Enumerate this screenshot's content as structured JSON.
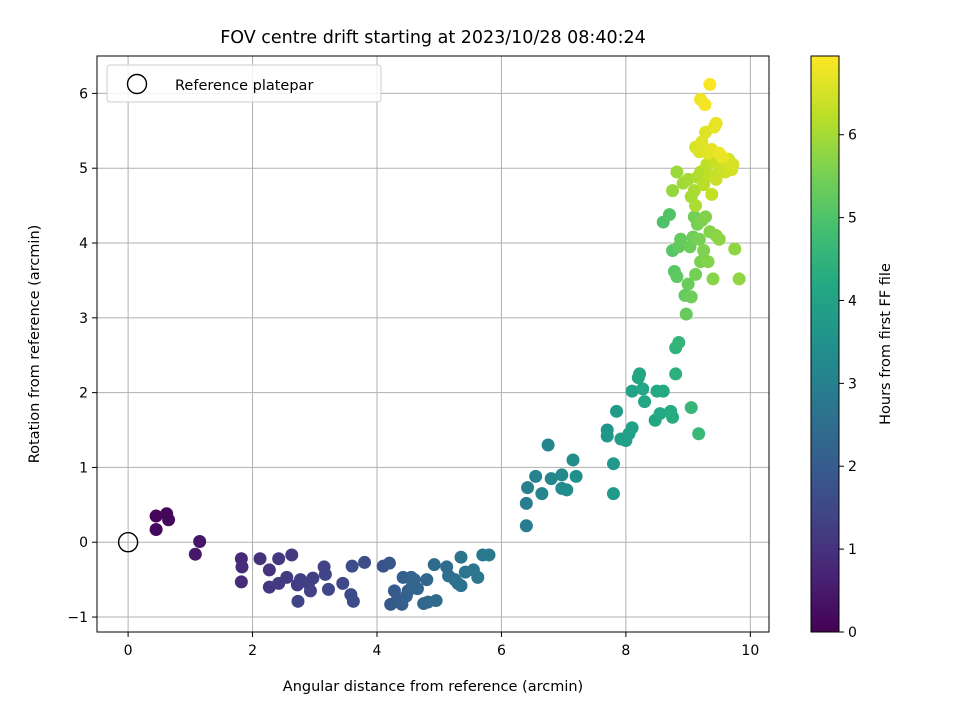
{
  "chart_data": {
    "type": "scatter",
    "title": "FOV centre drift starting at 2023/10/28 08:40:24",
    "xlabel": "Angular distance from reference (arcmin)",
    "ylabel": "Rotation from reference (arcmin)",
    "xlim": [
      -0.5,
      10.3
    ],
    "ylim": [
      -1.2,
      6.5
    ],
    "xticks": [
      "0",
      "2",
      "4",
      "6",
      "8",
      "10"
    ],
    "yticks": [
      "−1",
      "0",
      "1",
      "2",
      "3",
      "4",
      "5",
      "6"
    ],
    "grid": true,
    "legend": {
      "position": "top-left",
      "entries": [
        "Reference platepar"
      ]
    },
    "reference_point": {
      "x": 0,
      "y": 0
    },
    "colorbar": {
      "label": "Hours from first FF file",
      "range": [
        0,
        6.95
      ],
      "ticks": [
        "0",
        "1",
        "2",
        "3",
        "4",
        "5",
        "6"
      ],
      "colormap": "viridis"
    },
    "points": [
      {
        "x": 0.45,
        "y": 0.35,
        "h": 0.1
      },
      {
        "x": 0.62,
        "y": 0.38,
        "h": 0.12
      },
      {
        "x": 0.65,
        "y": 0.3,
        "h": 0.15
      },
      {
        "x": 0.45,
        "y": 0.17,
        "h": 0.18
      },
      {
        "x": 1.15,
        "y": 0.01,
        "h": 0.4
      },
      {
        "x": 1.08,
        "y": -0.16,
        "h": 0.45
      },
      {
        "x": 1.82,
        "y": -0.22,
        "h": 0.8
      },
      {
        "x": 1.83,
        "y": -0.33,
        "h": 0.85
      },
      {
        "x": 1.82,
        "y": -0.53,
        "h": 0.9
      },
      {
        "x": 2.12,
        "y": -0.22,
        "h": 1.0
      },
      {
        "x": 2.27,
        "y": -0.37,
        "h": 1.05
      },
      {
        "x": 2.42,
        "y": -0.22,
        "h": 1.1
      },
      {
        "x": 2.63,
        "y": -0.17,
        "h": 1.12
      },
      {
        "x": 2.27,
        "y": -0.6,
        "h": 1.15
      },
      {
        "x": 2.42,
        "y": -0.55,
        "h": 1.18
      },
      {
        "x": 2.55,
        "y": -0.47,
        "h": 1.2
      },
      {
        "x": 2.72,
        "y": -0.57,
        "h": 1.22
      },
      {
        "x": 2.77,
        "y": -0.5,
        "h": 1.25
      },
      {
        "x": 2.9,
        "y": -0.55,
        "h": 1.28
      },
      {
        "x": 2.97,
        "y": -0.48,
        "h": 1.3
      },
      {
        "x": 2.93,
        "y": -0.65,
        "h": 1.33
      },
      {
        "x": 3.15,
        "y": -0.33,
        "h": 1.36
      },
      {
        "x": 3.17,
        "y": -0.43,
        "h": 1.4
      },
      {
        "x": 2.73,
        "y": -0.79,
        "h": 1.42
      },
      {
        "x": 3.22,
        "y": -0.63,
        "h": 1.45
      },
      {
        "x": 3.45,
        "y": -0.55,
        "h": 1.5
      },
      {
        "x": 3.58,
        "y": -0.7,
        "h": 1.55
      },
      {
        "x": 3.62,
        "y": -0.79,
        "h": 1.58
      },
      {
        "x": 3.6,
        "y": -0.32,
        "h": 1.62
      },
      {
        "x": 3.8,
        "y": -0.27,
        "h": 1.65
      },
      {
        "x": 4.1,
        "y": -0.32,
        "h": 1.8
      },
      {
        "x": 4.2,
        "y": -0.28,
        "h": 1.85
      },
      {
        "x": 4.22,
        "y": -0.83,
        "h": 1.9
      },
      {
        "x": 4.28,
        "y": -0.65,
        "h": 1.95
      },
      {
        "x": 4.32,
        "y": -0.78,
        "h": 2.0
      },
      {
        "x": 4.4,
        "y": -0.83,
        "h": 2.05
      },
      {
        "x": 4.42,
        "y": -0.47,
        "h": 2.1
      },
      {
        "x": 4.47,
        "y": -0.72,
        "h": 2.15
      },
      {
        "x": 4.5,
        "y": -0.65,
        "h": 2.18
      },
      {
        "x": 4.55,
        "y": -0.47,
        "h": 2.2
      },
      {
        "x": 4.57,
        "y": -0.58,
        "h": 2.22
      },
      {
        "x": 4.6,
        "y": -0.5,
        "h": 2.25
      },
      {
        "x": 4.65,
        "y": -0.62,
        "h": 2.28
      },
      {
        "x": 4.75,
        "y": -0.82,
        "h": 2.3
      },
      {
        "x": 4.8,
        "y": -0.5,
        "h": 2.32
      },
      {
        "x": 4.82,
        "y": -0.8,
        "h": 2.35
      },
      {
        "x": 4.92,
        "y": -0.3,
        "h": 2.38
      },
      {
        "x": 4.95,
        "y": -0.78,
        "h": 2.4
      },
      {
        "x": 5.12,
        "y": -0.33,
        "h": 2.45
      },
      {
        "x": 5.15,
        "y": -0.45,
        "h": 2.5
      },
      {
        "x": 5.25,
        "y": -0.5,
        "h": 2.55
      },
      {
        "x": 5.3,
        "y": -0.55,
        "h": 2.6
      },
      {
        "x": 5.35,
        "y": -0.58,
        "h": 2.62
      },
      {
        "x": 5.35,
        "y": -0.2,
        "h": 2.65
      },
      {
        "x": 5.42,
        "y": -0.4,
        "h": 2.7
      },
      {
        "x": 5.55,
        "y": -0.37,
        "h": 2.72
      },
      {
        "x": 5.62,
        "y": -0.47,
        "h": 2.75
      },
      {
        "x": 5.7,
        "y": -0.17,
        "h": 2.78
      },
      {
        "x": 5.8,
        "y": -0.17,
        "h": 2.8
      },
      {
        "x": 6.4,
        "y": 0.22,
        "h": 2.9
      },
      {
        "x": 6.4,
        "y": 0.52,
        "h": 2.95
      },
      {
        "x": 6.42,
        "y": 0.73,
        "h": 3.0
      },
      {
        "x": 6.55,
        "y": 0.88,
        "h": 3.05
      },
      {
        "x": 6.65,
        "y": 0.65,
        "h": 3.1
      },
      {
        "x": 6.75,
        "y": 1.3,
        "h": 3.15
      },
      {
        "x": 6.8,
        "y": 0.85,
        "h": 3.2
      },
      {
        "x": 6.97,
        "y": 0.9,
        "h": 3.25
      },
      {
        "x": 6.97,
        "y": 0.72,
        "h": 3.3
      },
      {
        "x": 7.05,
        "y": 0.7,
        "h": 3.35
      },
      {
        "x": 7.15,
        "y": 1.1,
        "h": 3.4
      },
      {
        "x": 7.2,
        "y": 0.88,
        "h": 3.45
      },
      {
        "x": 7.7,
        "y": 1.5,
        "h": 3.6
      },
      {
        "x": 7.7,
        "y": 1.42,
        "h": 3.65
      },
      {
        "x": 7.8,
        "y": 1.05,
        "h": 3.7
      },
      {
        "x": 7.8,
        "y": 0.65,
        "h": 3.75
      },
      {
        "x": 7.85,
        "y": 1.75,
        "h": 3.8
      },
      {
        "x": 7.92,
        "y": 1.38,
        "h": 3.85
      },
      {
        "x": 8.0,
        "y": 1.36,
        "h": 3.9
      },
      {
        "x": 8.05,
        "y": 1.45,
        "h": 3.92
      },
      {
        "x": 8.1,
        "y": 1.53,
        "h": 3.95
      },
      {
        "x": 8.1,
        "y": 2.02,
        "h": 4.0
      },
      {
        "x": 8.2,
        "y": 2.2,
        "h": 4.05
      },
      {
        "x": 8.22,
        "y": 2.25,
        "h": 4.08
      },
      {
        "x": 8.27,
        "y": 2.05,
        "h": 4.1
      },
      {
        "x": 8.3,
        "y": 1.88,
        "h": 4.12
      },
      {
        "x": 8.47,
        "y": 1.63,
        "h": 4.15
      },
      {
        "x": 8.5,
        "y": 2.02,
        "h": 4.18
      },
      {
        "x": 8.55,
        "y": 1.72,
        "h": 4.2
      },
      {
        "x": 8.6,
        "y": 2.02,
        "h": 4.22
      },
      {
        "x": 8.72,
        "y": 1.75,
        "h": 4.25
      },
      {
        "x": 8.75,
        "y": 1.67,
        "h": 4.28
      },
      {
        "x": 8.8,
        "y": 2.25,
        "h": 4.4
      },
      {
        "x": 8.8,
        "y": 2.6,
        "h": 4.5
      },
      {
        "x": 8.85,
        "y": 2.67,
        "h": 4.55
      },
      {
        "x": 9.05,
        "y": 1.8,
        "h": 4.6
      },
      {
        "x": 9.17,
        "y": 1.45,
        "h": 4.65
      },
      {
        "x": 8.6,
        "y": 4.28,
        "h": 5.0
      },
      {
        "x": 8.7,
        "y": 4.38,
        "h": 5.05
      },
      {
        "x": 8.75,
        "y": 3.9,
        "h": 5.1
      },
      {
        "x": 8.78,
        "y": 3.62,
        "h": 5.15
      },
      {
        "x": 8.82,
        "y": 3.55,
        "h": 5.2
      },
      {
        "x": 8.85,
        "y": 3.95,
        "h": 5.25
      },
      {
        "x": 8.88,
        "y": 4.05,
        "h": 5.28
      },
      {
        "x": 8.95,
        "y": 3.3,
        "h": 5.3
      },
      {
        "x": 8.97,
        "y": 3.05,
        "h": 5.32
      },
      {
        "x": 9.0,
        "y": 3.45,
        "h": 5.35
      },
      {
        "x": 9.03,
        "y": 3.95,
        "h": 5.38
      },
      {
        "x": 9.05,
        "y": 3.28,
        "h": 5.4
      },
      {
        "x": 9.08,
        "y": 4.08,
        "h": 5.42
      },
      {
        "x": 9.1,
        "y": 4.35,
        "h": 5.45
      },
      {
        "x": 9.12,
        "y": 3.58,
        "h": 5.48
      },
      {
        "x": 9.15,
        "y": 4.25,
        "h": 5.5
      },
      {
        "x": 9.18,
        "y": 4.05,
        "h": 5.52
      },
      {
        "x": 9.2,
        "y": 3.75,
        "h": 5.55
      },
      {
        "x": 9.22,
        "y": 4.3,
        "h": 5.58
      },
      {
        "x": 9.25,
        "y": 3.9,
        "h": 5.6
      },
      {
        "x": 9.28,
        "y": 4.35,
        "h": 5.62
      },
      {
        "x": 9.32,
        "y": 3.75,
        "h": 5.65
      },
      {
        "x": 9.35,
        "y": 4.15,
        "h": 5.68
      },
      {
        "x": 9.4,
        "y": 3.52,
        "h": 5.7
      },
      {
        "x": 9.45,
        "y": 4.1,
        "h": 5.72
      },
      {
        "x": 9.5,
        "y": 4.05,
        "h": 5.75
      },
      {
        "x": 9.75,
        "y": 3.92,
        "h": 5.78
      },
      {
        "x": 9.82,
        "y": 3.52,
        "h": 5.8
      },
      {
        "x": 8.75,
        "y": 4.7,
        "h": 5.85
      },
      {
        "x": 8.82,
        "y": 4.95,
        "h": 5.9
      },
      {
        "x": 8.92,
        "y": 4.8,
        "h": 5.95
      },
      {
        "x": 9.0,
        "y": 4.85,
        "h": 6.0
      },
      {
        "x": 9.05,
        "y": 4.62,
        "h": 6.02
      },
      {
        "x": 9.1,
        "y": 4.7,
        "h": 6.05
      },
      {
        "x": 9.12,
        "y": 4.5,
        "h": 6.08
      },
      {
        "x": 9.15,
        "y": 4.88,
        "h": 6.1
      },
      {
        "x": 9.2,
        "y": 4.95,
        "h": 6.15
      },
      {
        "x": 9.25,
        "y": 4.78,
        "h": 6.2
      },
      {
        "x": 9.3,
        "y": 5.05,
        "h": 6.25
      },
      {
        "x": 9.35,
        "y": 4.9,
        "h": 6.28
      },
      {
        "x": 9.38,
        "y": 4.65,
        "h": 6.3
      },
      {
        "x": 9.4,
        "y": 5.1,
        "h": 6.35
      },
      {
        "x": 9.45,
        "y": 4.85,
        "h": 6.38
      },
      {
        "x": 9.5,
        "y": 5.0,
        "h": 6.4
      },
      {
        "x": 9.55,
        "y": 5.05,
        "h": 6.42
      },
      {
        "x": 9.6,
        "y": 4.95,
        "h": 6.45
      },
      {
        "x": 9.65,
        "y": 5.12,
        "h": 6.48
      },
      {
        "x": 9.7,
        "y": 4.98,
        "h": 6.5
      },
      {
        "x": 9.72,
        "y": 5.05,
        "h": 6.52
      },
      {
        "x": 9.12,
        "y": 5.28,
        "h": 6.55
      },
      {
        "x": 9.18,
        "y": 5.22,
        "h": 6.58
      },
      {
        "x": 9.22,
        "y": 5.35,
        "h": 6.6
      },
      {
        "x": 9.28,
        "y": 5.48,
        "h": 6.62
      },
      {
        "x": 9.32,
        "y": 5.2,
        "h": 6.65
      },
      {
        "x": 9.38,
        "y": 5.25,
        "h": 6.68
      },
      {
        "x": 9.42,
        "y": 5.55,
        "h": 6.7
      },
      {
        "x": 9.45,
        "y": 5.6,
        "h": 6.72
      },
      {
        "x": 9.5,
        "y": 5.2,
        "h": 6.74
      },
      {
        "x": 9.55,
        "y": 5.15,
        "h": 6.76
      },
      {
        "x": 9.2,
        "y": 5.92,
        "h": 6.8
      },
      {
        "x": 9.27,
        "y": 5.85,
        "h": 6.85
      },
      {
        "x": 9.35,
        "y": 6.12,
        "h": 6.9
      }
    ]
  }
}
